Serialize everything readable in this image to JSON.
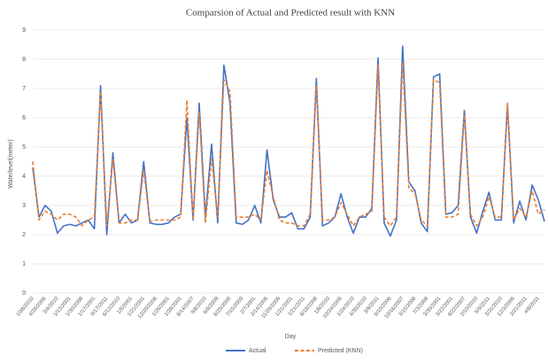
{
  "chart_data": {
    "type": "line",
    "title": "Comparsion of Actual and Predicted result with KNN",
    "x_label": "Day",
    "y_label": "Waterlevel(meter)",
    "categories": [
      "10/8/2010",
      null,
      "4/28/2006",
      null,
      "3/4/2010",
      null,
      "1/13/2001",
      null,
      "1/30/2008",
      null,
      "1/17/2001",
      null,
      "9/17/2011",
      null,
      "6/12/2010",
      null,
      "1/5/2001",
      null,
      "1/21/2001",
      null,
      "12/20/2006",
      null,
      "1/26/2001",
      null,
      "1/28/2001",
      null,
      "8/14/2007",
      null,
      "9/8/2010",
      null,
      "6/9/2009",
      null,
      "8/25/2005",
      null,
      "7/15/2009",
      null,
      "2/7/2001",
      null,
      "2/14/2005",
      null,
      "11/26/2005",
      null,
      "1/21/2001",
      null,
      "1/21/2011",
      null,
      "8/18/2008",
      null,
      "1/8/2010",
      null,
      "10/24/2005",
      null,
      "1/24/2010",
      null,
      "4/30/2010",
      null,
      "3/9/2011",
      null,
      "9/19/2006",
      null,
      "10/16/2007",
      null,
      "3/15/2008",
      null,
      "7/3/2008",
      null,
      "3/30/2001",
      null,
      "3/22/2001",
      null,
      "8/22/2007",
      null,
      "2/10/2010",
      null,
      "5/9/2011",
      null,
      "3/31/2010",
      null,
      "12/3/2006",
      null,
      "2/21/2011",
      null,
      "4/8/2011",
      null
    ],
    "series": [
      {
        "name": "Actual",
        "color": "#4472c4",
        "dash": "solid",
        "values": [
          4.3,
          2.6,
          3.0,
          2.8,
          2.05,
          2.3,
          2.35,
          2.3,
          2.4,
          2.5,
          2.2,
          7.1,
          2.0,
          4.8,
          2.4,
          2.7,
          2.4,
          2.5,
          4.5,
          2.4,
          2.35,
          2.35,
          2.4,
          2.6,
          2.7,
          6.0,
          2.5,
          6.5,
          2.6,
          5.1,
          2.4,
          7.8,
          6.5,
          2.4,
          2.35,
          2.5,
          3.0,
          2.4,
          4.9,
          3.2,
          2.6,
          2.6,
          2.75,
          2.2,
          2.2,
          2.6,
          7.35,
          2.3,
          2.4,
          2.6,
          3.4,
          2.6,
          2.05,
          2.6,
          2.6,
          2.9,
          8.05,
          2.4,
          1.95,
          2.5,
          8.45,
          3.8,
          3.5,
          2.4,
          2.1,
          7.4,
          7.5,
          2.7,
          2.75,
          3.0,
          6.25,
          2.6,
          2.05,
          2.8,
          3.45,
          2.5,
          2.5,
          6.45,
          2.4,
          3.15,
          2.5,
          3.7,
          3.2,
          2.45
        ]
      },
      {
        "name": "Predicted (KNN)",
        "color": "#ed7d31",
        "dash": "dashed",
        "values": [
          4.5,
          2.5,
          2.8,
          2.7,
          2.5,
          2.7,
          2.7,
          2.6,
          2.3,
          2.5,
          2.6,
          6.9,
          2.3,
          4.6,
          2.4,
          2.4,
          2.5,
          2.5,
          4.2,
          2.45,
          2.5,
          2.5,
          2.5,
          2.5,
          2.6,
          6.6,
          2.5,
          6.2,
          2.4,
          4.6,
          2.6,
          7.3,
          6.9,
          2.6,
          2.6,
          2.6,
          2.7,
          2.5,
          4.2,
          3.3,
          2.5,
          2.4,
          2.4,
          2.3,
          2.3,
          2.7,
          7.1,
          2.5,
          2.5,
          2.6,
          3.1,
          2.7,
          2.3,
          2.6,
          2.7,
          2.8,
          7.8,
          2.6,
          2.3,
          2.6,
          7.9,
          3.6,
          3.4,
          2.5,
          2.3,
          7.3,
          7.2,
          2.6,
          2.6,
          2.7,
          6.1,
          2.7,
          2.3,
          2.6,
          3.3,
          2.6,
          2.6,
          6.5,
          2.5,
          2.9,
          2.6,
          3.5,
          2.7,
          2.85
        ]
      }
    ],
    "ylim": [
      0,
      9
    ],
    "yticks": [
      0,
      1,
      2,
      3,
      4,
      5,
      6,
      7,
      8,
      9
    ],
    "grid": true,
    "legend": "bottom"
  }
}
